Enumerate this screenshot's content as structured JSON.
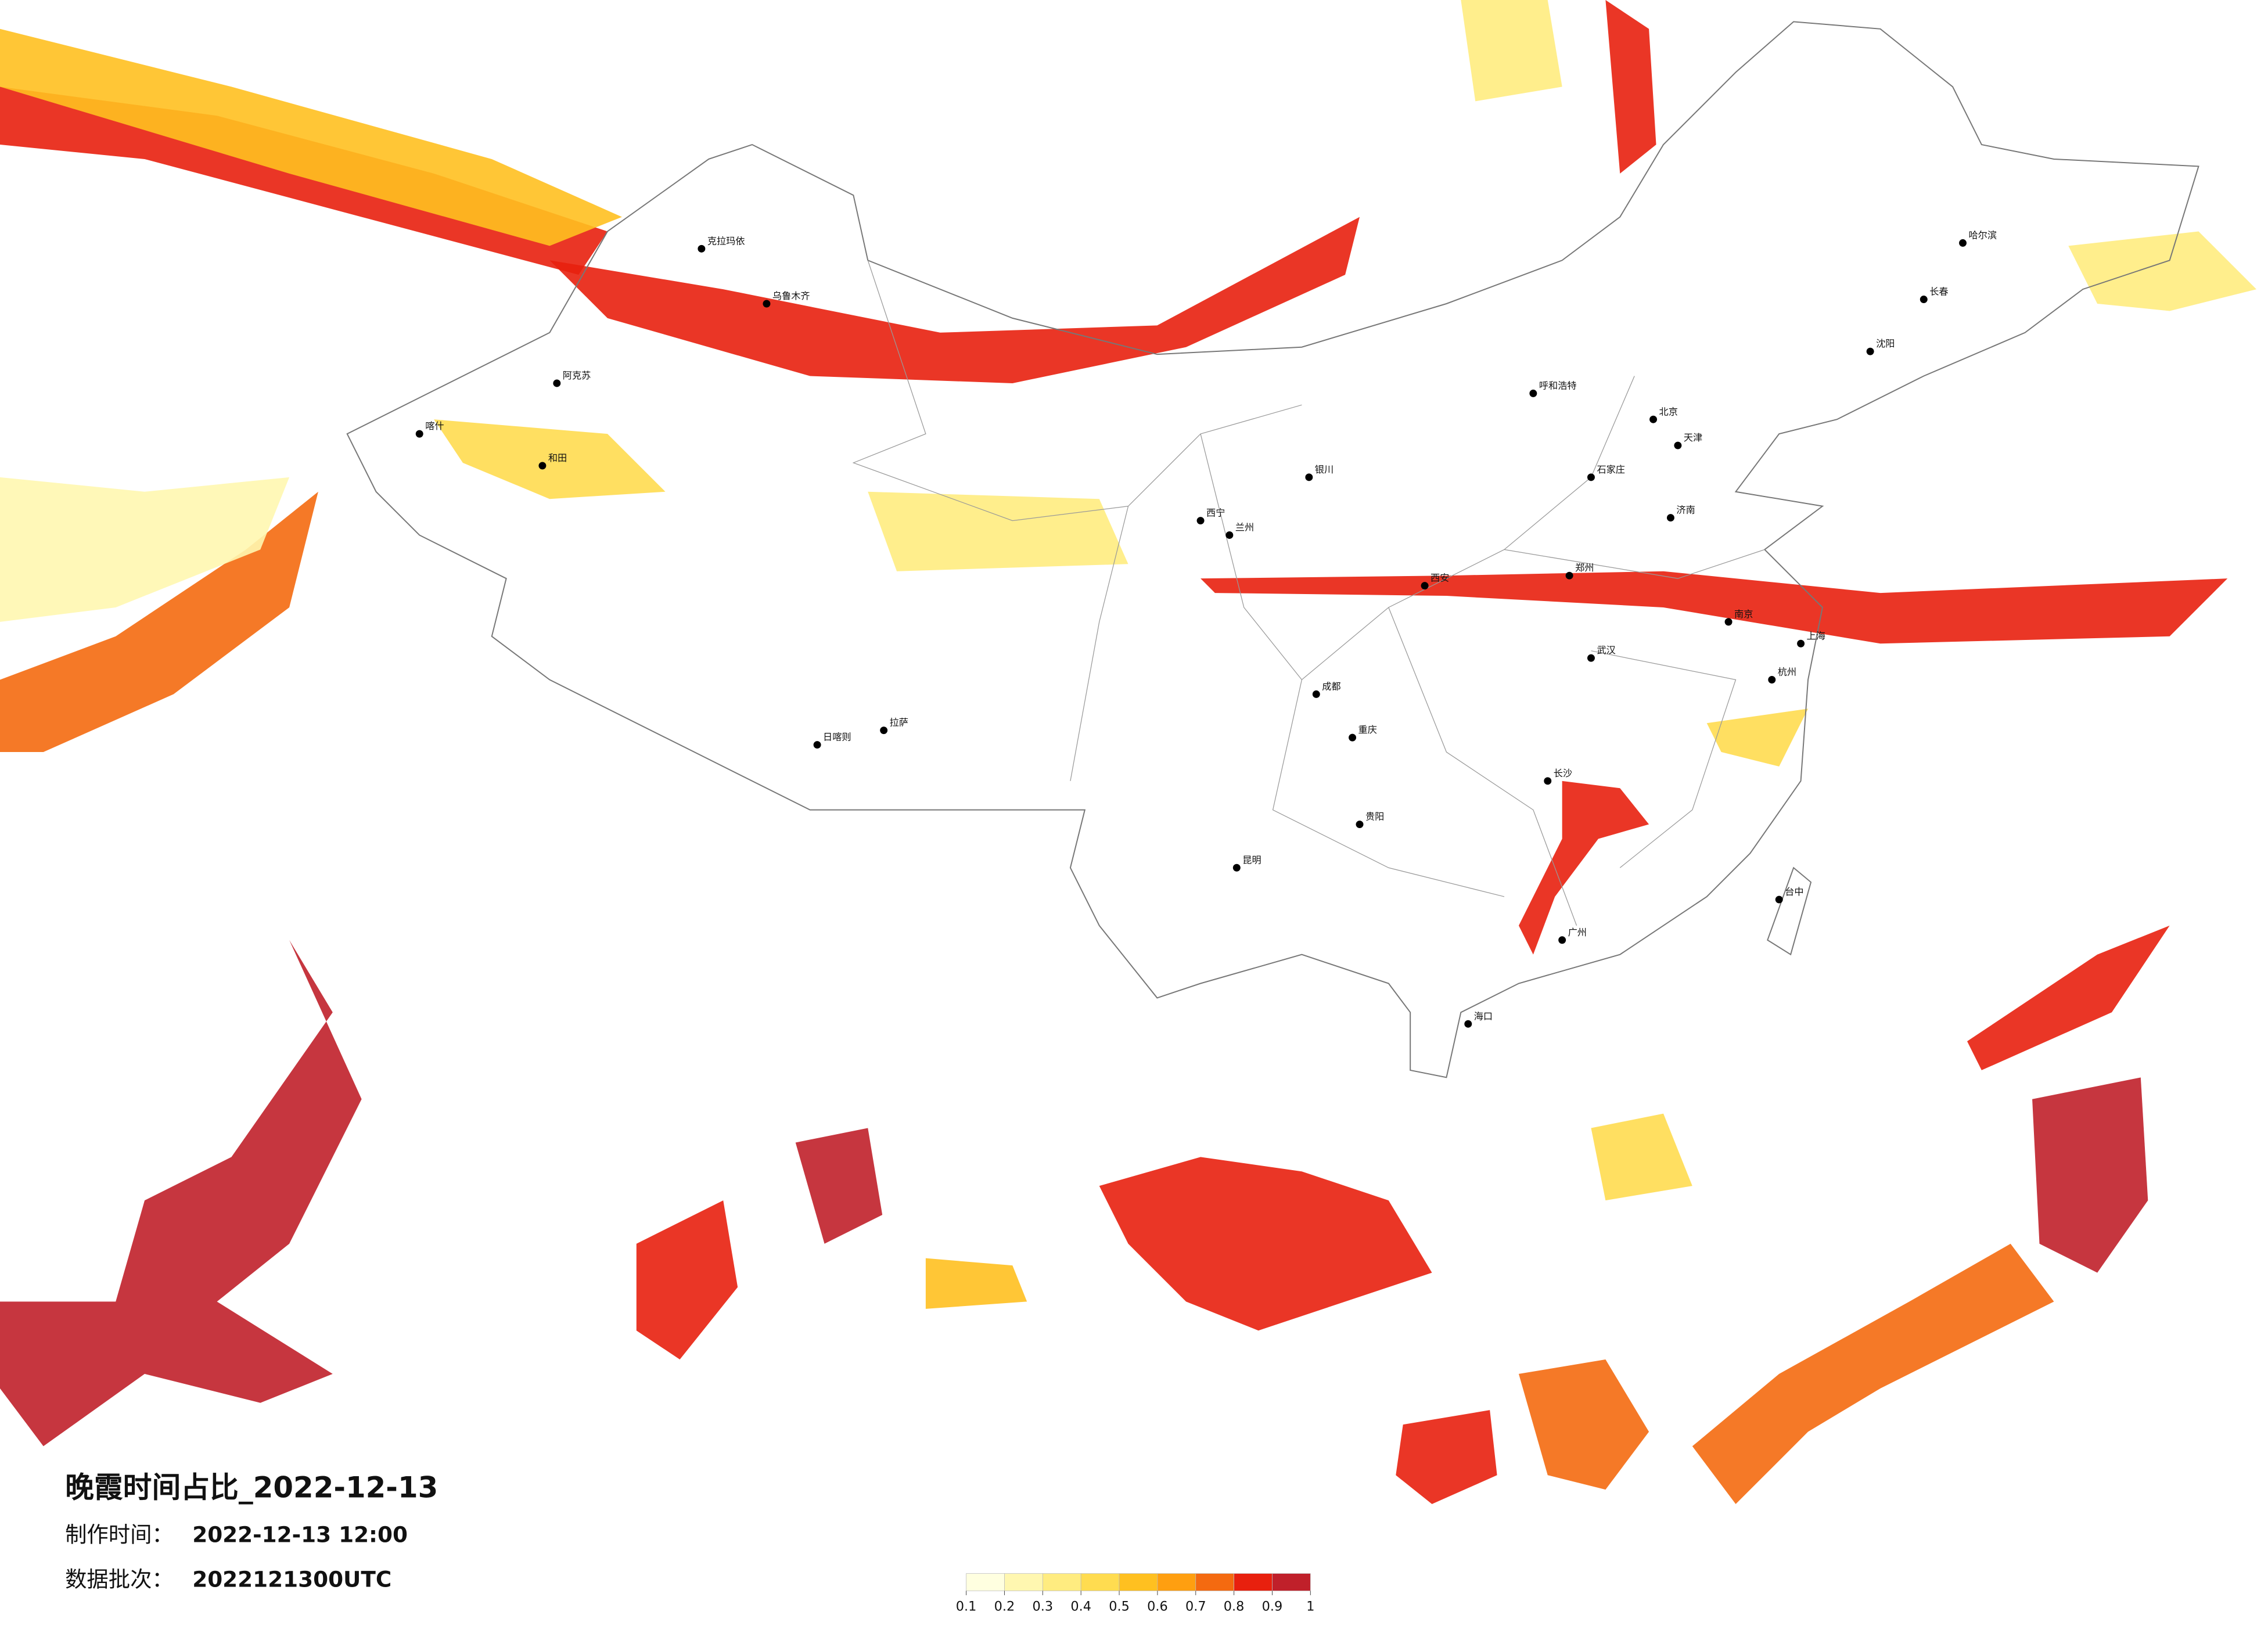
{
  "header": {
    "title": "晚霞时间占比_2022-12-13",
    "made_label": "制作时间：",
    "made_value": "2022-12-13 12:00",
    "batch_label": "数据批次：",
    "batch_value": "2022121300UTC"
  },
  "legend": {
    "ticks": [
      0.1,
      0.2,
      0.3,
      0.4,
      0.5,
      0.6,
      0.7,
      0.8,
      0.9,
      1
    ],
    "colors": [
      "#ffffe0",
      "#fff7b0",
      "#ffec80",
      "#ffdc50",
      "#ffc020",
      "#ff9f10",
      "#f46a10",
      "#e8200e",
      "#c0202a"
    ]
  },
  "cities": [
    "哈尔滨",
    "长春",
    "沈阳",
    "北京",
    "天津",
    "石家庄",
    "济南",
    "郑州",
    "西安",
    "武汉",
    "南京",
    "上海",
    "杭州",
    "长沙",
    "广州",
    "成都",
    "重庆",
    "昆明",
    "贵阳",
    "拉萨",
    "乌鲁木齐",
    "兰州",
    "西宁",
    "银川",
    "呼和浩特",
    "海口",
    "台中",
    "和田",
    "喀什",
    "阿克苏",
    "克拉玛依",
    "日喀则"
  ]
}
